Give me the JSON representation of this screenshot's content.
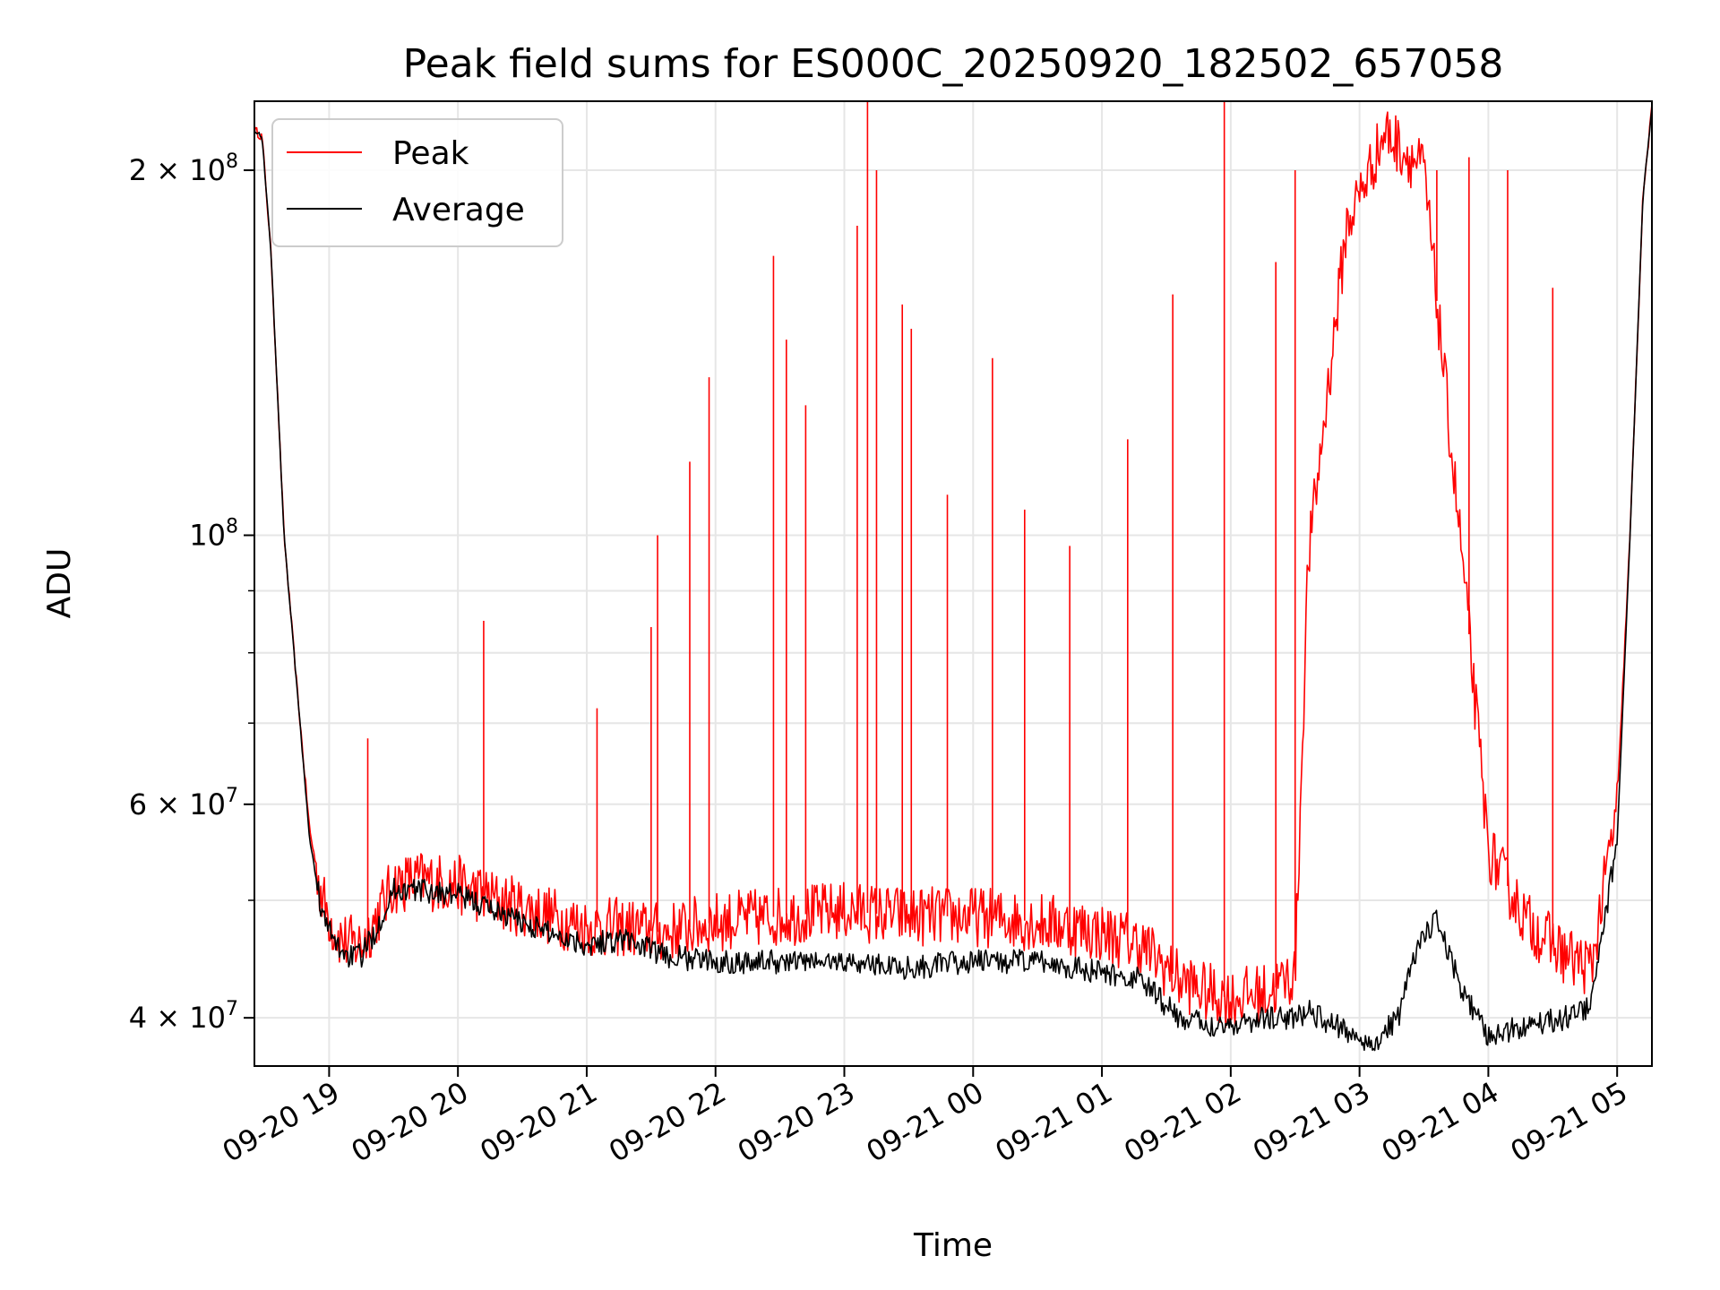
{
  "chart_data": {
    "type": "line",
    "title": "Peak field sums for ES000C_20250920_182502_657058",
    "xlabel": "Time",
    "ylabel": "ADU",
    "yscale": "log",
    "ylim": [
      36500000,
      228000000
    ],
    "xlim_hours_from_0920_1800": [
      0.42,
      11.27
    ],
    "grid": true,
    "legend_position": "upper-left",
    "x_ticks": [
      {
        "label": "09-20 19",
        "hour": 1
      },
      {
        "label": "09-20 20",
        "hour": 2
      },
      {
        "label": "09-20 21",
        "hour": 3
      },
      {
        "label": "09-20 22",
        "hour": 4
      },
      {
        "label": "09-20 23",
        "hour": 5
      },
      {
        "label": "09-21 00",
        "hour": 6
      },
      {
        "label": "09-21 01",
        "hour": 7
      },
      {
        "label": "09-21 02",
        "hour": 8
      },
      {
        "label": "09-21 03",
        "hour": 9
      },
      {
        "label": "09-21 04",
        "hour": 10
      },
      {
        "label": "09-21 05",
        "hour": 11
      }
    ],
    "y_major_ticks": [
      {
        "value": 40000000,
        "mantissa": "4",
        "exponent": "7"
      },
      {
        "value": 60000000,
        "mantissa": "6",
        "exponent": "7"
      },
      {
        "value": 100000000,
        "mantissa": "",
        "exponent": "8"
      },
      {
        "value": 200000000,
        "mantissa": "2",
        "exponent": "8"
      }
    ],
    "y_minor_ticks": [
      50000000,
      70000000,
      80000000,
      90000000
    ],
    "series": [
      {
        "name": "Peak",
        "color": "#ff0000",
        "hours": [
          0.42,
          0.48,
          0.55,
          0.65,
          0.75,
          0.85,
          0.95,
          1.05,
          1.15,
          1.25,
          1.35,
          1.5,
          1.7,
          2.0,
          2.3,
          2.6,
          3.0,
          3.3,
          3.6,
          4.0,
          4.5,
          5.0,
          5.5,
          6.0,
          6.5,
          6.8,
          7.0,
          7.3,
          7.6,
          7.8,
          8.0,
          8.3,
          8.5,
          8.6,
          8.9,
          9.2,
          9.5,
          9.8,
          10.0,
          10.3,
          10.6,
          10.8,
          11.0,
          11.1,
          11.2,
          11.27
        ],
        "values": [
          216000000,
          213000000,
          170000000,
          100000000,
          75000000,
          57000000,
          50000000,
          47000000,
          46000000,
          46000000,
          48000000,
          51500000,
          52000000,
          51500000,
          50000000,
          49000000,
          47500000,
          47500000,
          47000000,
          48000000,
          48500000,
          49000000,
          48500000,
          48500000,
          48000000,
          47500000,
          47000000,
          46000000,
          43000000,
          42000000,
          41500000,
          42000000,
          43500000,
          95000000,
          180000000,
          215000000,
          200000000,
          95000000,
          55000000,
          48000000,
          45000000,
          44000000,
          60000000,
          100000000,
          190000000,
          225000000
        ],
        "spikes": [
          {
            "hour": 1.3,
            "value": 68000000
          },
          {
            "hour": 2.2,
            "value": 85000000
          },
          {
            "hour": 3.08,
            "value": 72000000
          },
          {
            "hour": 3.5,
            "value": 84000000
          },
          {
            "hour": 3.55,
            "value": 100000000
          },
          {
            "hour": 3.8,
            "value": 115000000
          },
          {
            "hour": 3.95,
            "value": 135000000
          },
          {
            "hour": 4.45,
            "value": 170000000
          },
          {
            "hour": 4.55,
            "value": 145000000
          },
          {
            "hour": 4.7,
            "value": 128000000
          },
          {
            "hour": 5.1,
            "value": 180000000
          },
          {
            "hour": 5.18,
            "value": 235000000
          },
          {
            "hour": 5.25,
            "value": 200000000
          },
          {
            "hour": 5.45,
            "value": 155000000
          },
          {
            "hour": 5.52,
            "value": 148000000
          },
          {
            "hour": 5.8,
            "value": 108000000
          },
          {
            "hour": 6.15,
            "value": 140000000
          },
          {
            "hour": 6.4,
            "value": 105000000
          },
          {
            "hour": 6.75,
            "value": 98000000
          },
          {
            "hour": 7.2,
            "value": 120000000
          },
          {
            "hour": 7.55,
            "value": 158000000
          },
          {
            "hour": 7.95,
            "value": 230000000
          },
          {
            "hour": 8.35,
            "value": 168000000
          },
          {
            "hour": 8.5,
            "value": 200000000
          },
          {
            "hour": 9.6,
            "value": 200000000
          },
          {
            "hour": 9.85,
            "value": 205000000
          },
          {
            "hour": 10.15,
            "value": 200000000
          },
          {
            "hour": 10.5,
            "value": 160000000
          }
        ]
      },
      {
        "name": "Average",
        "color": "#000000",
        "hours": [
          0.42,
          0.48,
          0.55,
          0.65,
          0.75,
          0.85,
          0.95,
          1.05,
          1.15,
          1.25,
          1.35,
          1.5,
          1.7,
          2.0,
          2.3,
          2.6,
          3.0,
          3.3,
          3.6,
          4.0,
          4.5,
          5.0,
          5.5,
          6.0,
          6.5,
          6.8,
          7.0,
          7.3,
          7.6,
          7.8,
          8.0,
          8.3,
          8.5,
          8.6,
          8.9,
          9.1,
          9.3,
          9.45,
          9.6,
          9.8,
          10.0,
          10.3,
          10.6,
          10.8,
          11.0,
          11.1,
          11.2,
          11.27
        ],
        "values": [
          216000000,
          213000000,
          170000000,
          100000000,
          75000000,
          56000000,
          48500000,
          46000000,
          45000000,
          45000000,
          47000000,
          51000000,
          51000000,
          50500000,
          49000000,
          47500000,
          46000000,
          46500000,
          45000000,
          44500000,
          44500000,
          44500000,
          44000000,
          44500000,
          44500000,
          44000000,
          43500000,
          43000000,
          40000000,
          39500000,
          39500000,
          40000000,
          40000000,
          40500000,
          39000000,
          38000000,
          40000000,
          46000000,
          48000000,
          42000000,
          38500000,
          39500000,
          40000000,
          41000000,
          56000000,
          100000000,
          190000000,
          225000000
        ]
      }
    ]
  }
}
